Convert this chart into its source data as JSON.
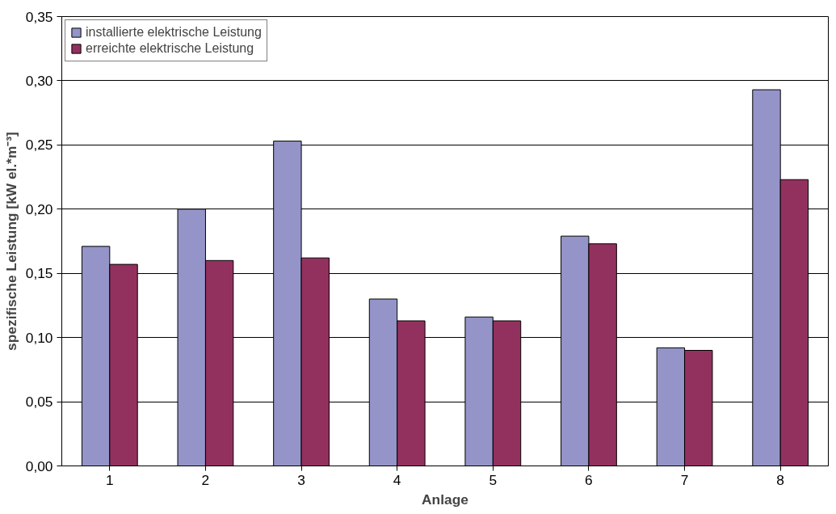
{
  "chart_data": {
    "type": "bar",
    "xlabel": "Anlage",
    "ylabel": "spezifische Leistung [kW el.*m⁻³]",
    "categories": [
      "1",
      "2",
      "3",
      "4",
      "5",
      "6",
      "7",
      "8"
    ],
    "series": [
      {
        "name": "installierte elektrische Leistung",
        "color": "#9494c8",
        "values": [
          0.171,
          0.2,
          0.253,
          0.13,
          0.116,
          0.179,
          0.092,
          0.293
        ]
      },
      {
        "name": "erreichte elektrische Leistung",
        "color": "#93315e",
        "values": [
          0.157,
          0.16,
          0.162,
          0.113,
          0.113,
          0.173,
          0.09,
          0.223
        ]
      }
    ],
    "ylim": [
      0,
      0.35
    ],
    "yticks": [
      {
        "value": 0,
        "label": "0,00"
      },
      {
        "value": 0.05,
        "label": "0,05"
      },
      {
        "value": 0.1,
        "label": "0,10"
      },
      {
        "value": 0.15,
        "label": "0,15"
      },
      {
        "value": 0.2,
        "label": "0,20"
      },
      {
        "value": 0.25,
        "label": "0,25"
      },
      {
        "value": 0.3,
        "label": "0,30"
      },
      {
        "value": 0.35,
        "label": "0,35"
      }
    ],
    "grid": "y",
    "legend": "top left"
  }
}
